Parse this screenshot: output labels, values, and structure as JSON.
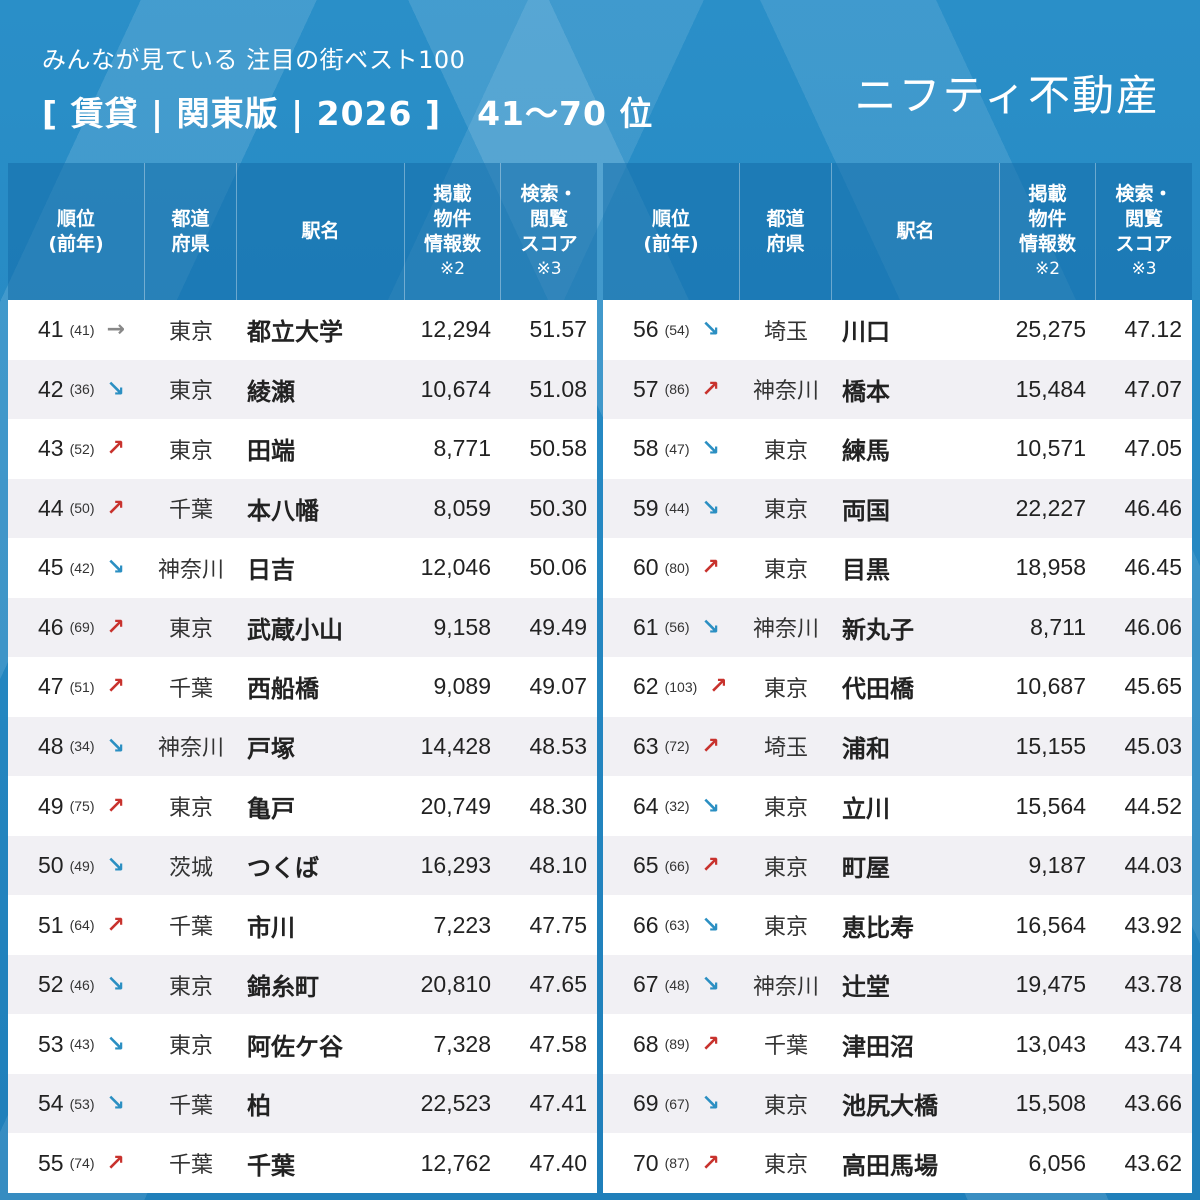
{
  "header": {
    "subtitle": "みんなが見ている 注目の街ベスト100",
    "title": "[ 賃貸 | 関東版 | 2026 ]",
    "range": "41〜70 位",
    "brand": "ニフティ不動産"
  },
  "columns": {
    "rank": "順位\n(前年)",
    "pref": "都道\n府県",
    "name": "駅名",
    "count": "掲載\n物件\n情報数",
    "count_note": "※2",
    "score": "検索・\n閲覧\nスコア",
    "score_note": "※3"
  },
  "colors": {
    "up": "#c8322d",
    "down": "#2b8fc2",
    "flat": "#888888",
    "header_bg": "#2a8cc4"
  },
  "chart_data": {
    "type": "table",
    "title": "みんなが見ている 注目の街ベスト100 [賃貸|関東版|2026] 41〜70位",
    "columns": [
      "順位",
      "前年",
      "変動",
      "都道府県",
      "駅名",
      "掲載物件情報数",
      "検索・閲覧スコア"
    ]
  },
  "left": [
    {
      "rank": "41",
      "prev": "(41)",
      "trend": "flat",
      "arrow": "→",
      "pref": "東京",
      "name": "都立大学",
      "count": "12,294",
      "score": "51.57"
    },
    {
      "rank": "42",
      "prev": "(36)",
      "trend": "down",
      "arrow": "↘",
      "pref": "東京",
      "name": "綾瀬",
      "count": "10,674",
      "score": "51.08"
    },
    {
      "rank": "43",
      "prev": "(52)",
      "trend": "up",
      "arrow": "↗",
      "pref": "東京",
      "name": "田端",
      "count": "8,771",
      "score": "50.58"
    },
    {
      "rank": "44",
      "prev": "(50)",
      "trend": "up",
      "arrow": "↗",
      "pref": "千葉",
      "name": "本八幡",
      "count": "8,059",
      "score": "50.30"
    },
    {
      "rank": "45",
      "prev": "(42)",
      "trend": "down",
      "arrow": "↘",
      "pref": "神奈川",
      "name": "日吉",
      "count": "12,046",
      "score": "50.06"
    },
    {
      "rank": "46",
      "prev": "(69)",
      "trend": "up",
      "arrow": "↗",
      "pref": "東京",
      "name": "武蔵小山",
      "count": "9,158",
      "score": "49.49"
    },
    {
      "rank": "47",
      "prev": "(51)",
      "trend": "up",
      "arrow": "↗",
      "pref": "千葉",
      "name": "西船橋",
      "count": "9,089",
      "score": "49.07"
    },
    {
      "rank": "48",
      "prev": "(34)",
      "trend": "down",
      "arrow": "↘",
      "pref": "神奈川",
      "name": "戸塚",
      "count": "14,428",
      "score": "48.53"
    },
    {
      "rank": "49",
      "prev": "(75)",
      "trend": "up",
      "arrow": "↗",
      "pref": "東京",
      "name": "亀戸",
      "count": "20,749",
      "score": "48.30"
    },
    {
      "rank": "50",
      "prev": "(49)",
      "trend": "down",
      "arrow": "↘",
      "pref": "茨城",
      "name": "つくば",
      "count": "16,293",
      "score": "48.10"
    },
    {
      "rank": "51",
      "prev": "(64)",
      "trend": "up",
      "arrow": "↗",
      "pref": "千葉",
      "name": "市川",
      "count": "7,223",
      "score": "47.75"
    },
    {
      "rank": "52",
      "prev": "(46)",
      "trend": "down",
      "arrow": "↘",
      "pref": "東京",
      "name": "錦糸町",
      "count": "20,810",
      "score": "47.65"
    },
    {
      "rank": "53",
      "prev": "(43)",
      "trend": "down",
      "arrow": "↘",
      "pref": "東京",
      "name": "阿佐ケ谷",
      "count": "7,328",
      "score": "47.58"
    },
    {
      "rank": "54",
      "prev": "(53)",
      "trend": "down",
      "arrow": "↘",
      "pref": "千葉",
      "name": "柏",
      "count": "22,523",
      "score": "47.41"
    },
    {
      "rank": "55",
      "prev": "(74)",
      "trend": "up",
      "arrow": "↗",
      "pref": "千葉",
      "name": "千葉",
      "count": "12,762",
      "score": "47.40"
    }
  ],
  "right": [
    {
      "rank": "56",
      "prev": "(54)",
      "trend": "down",
      "arrow": "↘",
      "pref": "埼玉",
      "name": "川口",
      "count": "25,275",
      "score": "47.12"
    },
    {
      "rank": "57",
      "prev": "(86)",
      "trend": "up",
      "arrow": "↗",
      "pref": "神奈川",
      "name": "橋本",
      "count": "15,484",
      "score": "47.07"
    },
    {
      "rank": "58",
      "prev": "(47)",
      "trend": "down",
      "arrow": "↘",
      "pref": "東京",
      "name": "練馬",
      "count": "10,571",
      "score": "47.05"
    },
    {
      "rank": "59",
      "prev": "(44)",
      "trend": "down",
      "arrow": "↘",
      "pref": "東京",
      "name": "両国",
      "count": "22,227",
      "score": "46.46"
    },
    {
      "rank": "60",
      "prev": "(80)",
      "trend": "up",
      "arrow": "↗",
      "pref": "東京",
      "name": "目黒",
      "count": "18,958",
      "score": "46.45"
    },
    {
      "rank": "61",
      "prev": "(56)",
      "trend": "down",
      "arrow": "↘",
      "pref": "神奈川",
      "name": "新丸子",
      "count": "8,711",
      "score": "46.06"
    },
    {
      "rank": "62",
      "prev": "(103)",
      "trend": "up",
      "arrow": "↗",
      "pref": "東京",
      "name": "代田橋",
      "count": "10,687",
      "score": "45.65"
    },
    {
      "rank": "63",
      "prev": "(72)",
      "trend": "up",
      "arrow": "↗",
      "pref": "埼玉",
      "name": "浦和",
      "count": "15,155",
      "score": "45.03"
    },
    {
      "rank": "64",
      "prev": "(32)",
      "trend": "down",
      "arrow": "↘",
      "pref": "東京",
      "name": "立川",
      "count": "15,564",
      "score": "44.52"
    },
    {
      "rank": "65",
      "prev": "(66)",
      "trend": "up",
      "arrow": "↗",
      "pref": "東京",
      "name": "町屋",
      "count": "9,187",
      "score": "44.03"
    },
    {
      "rank": "66",
      "prev": "(63)",
      "trend": "down",
      "arrow": "↘",
      "pref": "東京",
      "name": "恵比寿",
      "count": "16,564",
      "score": "43.92"
    },
    {
      "rank": "67",
      "prev": "(48)",
      "trend": "down",
      "arrow": "↘",
      "pref": "神奈川",
      "name": "辻堂",
      "count": "19,475",
      "score": "43.78"
    },
    {
      "rank": "68",
      "prev": "(89)",
      "trend": "up",
      "arrow": "↗",
      "pref": "千葉",
      "name": "津田沼",
      "count": "13,043",
      "score": "43.74"
    },
    {
      "rank": "69",
      "prev": "(67)",
      "trend": "down",
      "arrow": "↘",
      "pref": "東京",
      "name": "池尻大橋",
      "count": "15,508",
      "score": "43.66"
    },
    {
      "rank": "70",
      "prev": "(87)",
      "trend": "up",
      "arrow": "↗",
      "pref": "東京",
      "name": "高田馬場",
      "count": "6,056",
      "score": "43.62"
    }
  ]
}
